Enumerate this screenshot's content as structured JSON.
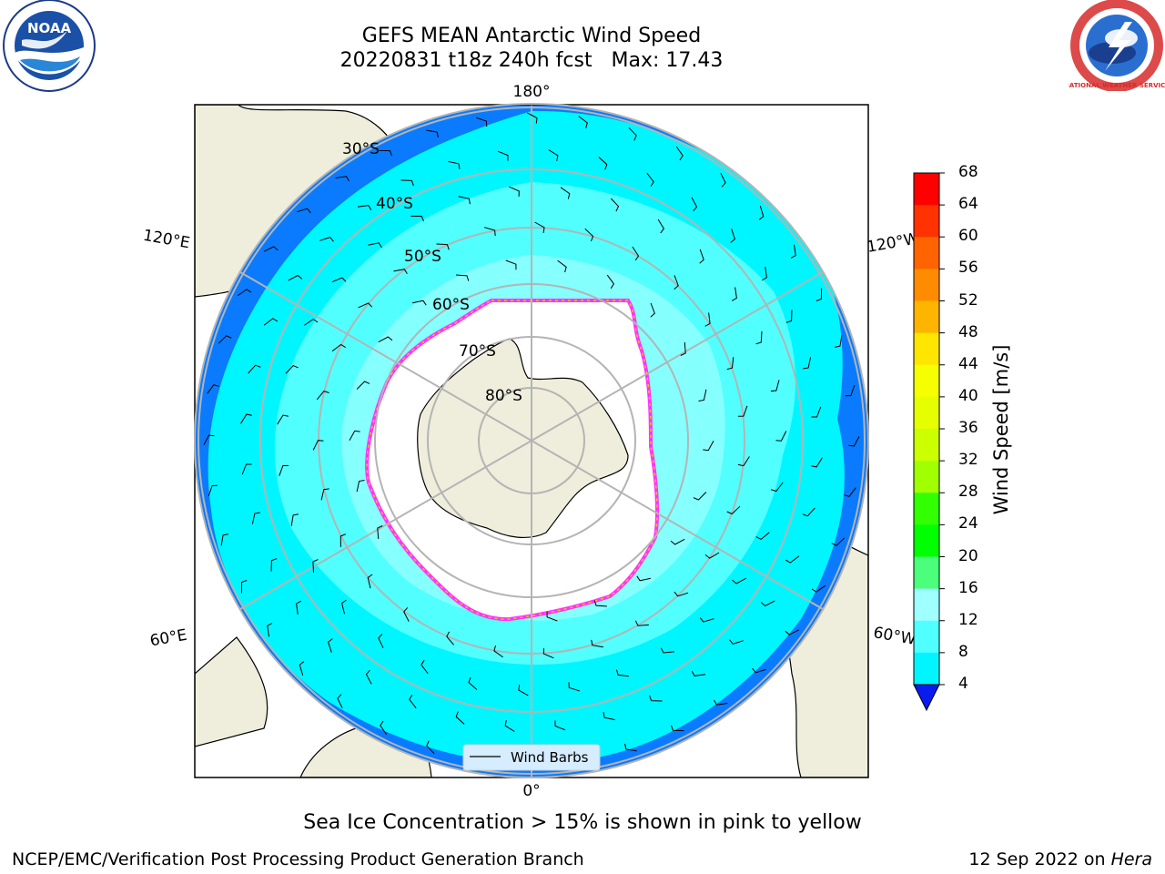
{
  "title": {
    "line1": "GEFS MEAN Antarctic Wind Speed",
    "line2": "20220831 t18z 240h fcst   Max: 17.43"
  },
  "logos": {
    "noaa_text": "NOAA",
    "nws_text": "NATIONAL WEATHER SERVICE"
  },
  "map": {
    "projection": "south polar stereographic",
    "longitude_labels": [
      "180°",
      "120°E",
      "120°W",
      "60°E",
      "60°W",
      "0°"
    ],
    "latitude_labels": [
      "30°S",
      "40°S",
      "50°S",
      "60°S",
      "70°S",
      "80°S"
    ],
    "legend_entry": "Wind Barbs",
    "colors": {
      "land": "#efeedc",
      "ocean_4_8": "#0a7bff",
      "ocean_8_12": "#00f6ff",
      "ocean_12_16": "#52ffff",
      "ocean_16_20": "#9dffff",
      "sea_ice_edge": "#ff33ff",
      "sea_ice_interior": "#ffb428",
      "gridline": "#b4b4b4"
    }
  },
  "colorbar": {
    "label": "Wind Speed [m/s]",
    "ticks": [
      "68",
      "64",
      "60",
      "56",
      "52",
      "48",
      "44",
      "40",
      "36",
      "32",
      "28",
      "24",
      "20",
      "16",
      "12",
      "8",
      "4"
    ],
    "colors": [
      "#ff0000",
      "#ff3200",
      "#ff6400",
      "#ff8c00",
      "#ffb400",
      "#ffe600",
      "#f5ff00",
      "#e6ff00",
      "#ccff00",
      "#a0ff00",
      "#32ff00",
      "#00ff00",
      "#4bff7d",
      "#a0ffff",
      "#50ffff",
      "#00f5ff",
      "#0a7bff"
    ],
    "extend_color": "#0a1bf0"
  },
  "caption": "Sea Ice Concentration > 15% is shown in pink to yellow",
  "footer": {
    "left": "NCEP/EMC/Verification Post Processing Product Generation Branch",
    "right_date": "12 Sep 2022 on ",
    "right_machine": "Hera"
  }
}
